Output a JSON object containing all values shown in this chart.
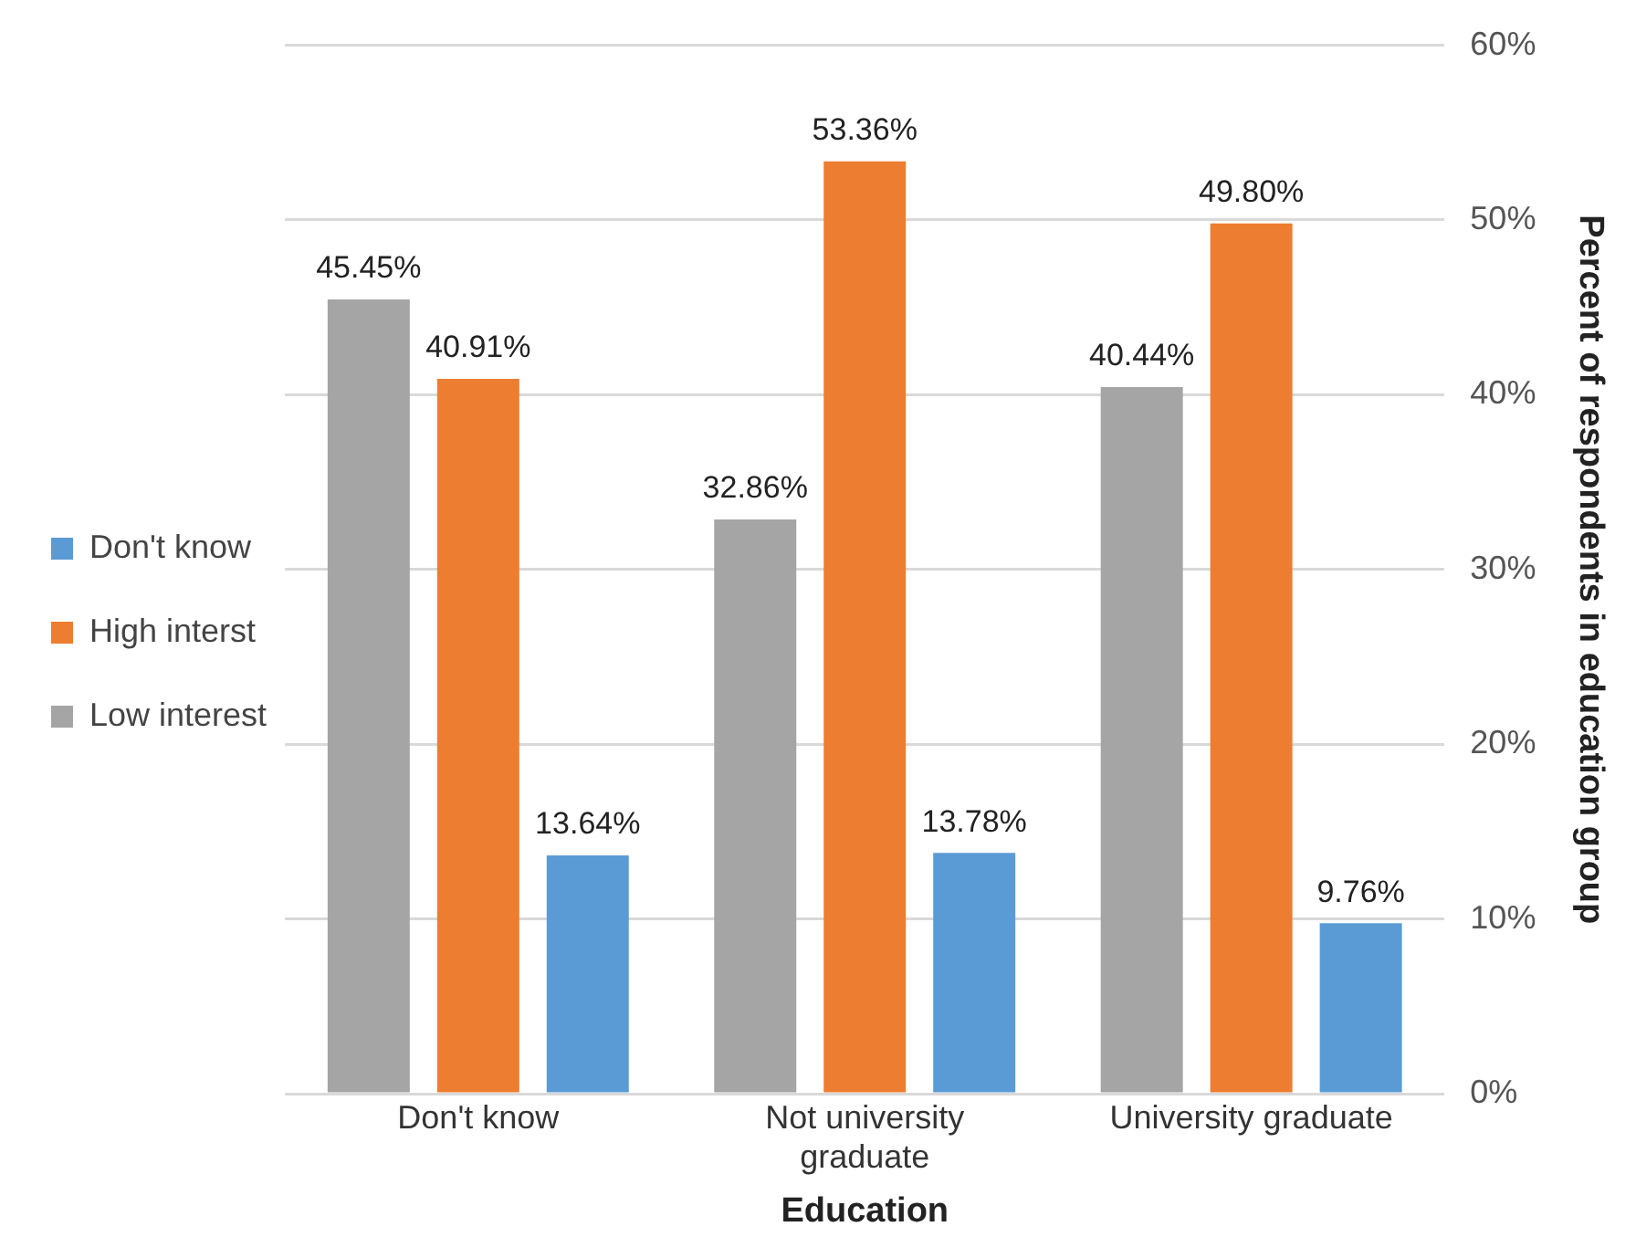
{
  "chart_data": {
    "type": "bar",
    "xlabel": "Education",
    "ylabel": "Percent of respondents in education group",
    "categories": [
      "Don't know",
      "Not university graduate",
      "University graduate"
    ],
    "series": [
      {
        "name": "Low interest",
        "color": "#a5a5a5",
        "values": [
          45.45,
          32.86,
          40.44
        ],
        "value_labels": [
          "45.45%",
          "32.86%",
          "40.44%"
        ]
      },
      {
        "name": "High interst",
        "color": "#ed7d31",
        "values": [
          40.91,
          53.36,
          49.8
        ],
        "value_labels": [
          "40.91%",
          "53.36%",
          "49.80%"
        ]
      },
      {
        "name": "Don't know",
        "color": "#5b9bd5",
        "values": [
          13.64,
          13.78,
          9.76
        ],
        "value_labels": [
          "13.64%",
          "13.78%",
          "9.76%"
        ]
      }
    ],
    "ylim": [
      0,
      60
    ],
    "yticks": [
      {
        "value": 0,
        "label": "0%"
      },
      {
        "value": 10,
        "label": "10%"
      },
      {
        "value": 20,
        "label": "20%"
      },
      {
        "value": 30,
        "label": "30%"
      },
      {
        "value": 40,
        "label": "40%"
      },
      {
        "value": 50,
        "label": "50%"
      },
      {
        "value": 60,
        "label": "60%"
      }
    ],
    "grid": "y",
    "legend": "left"
  }
}
